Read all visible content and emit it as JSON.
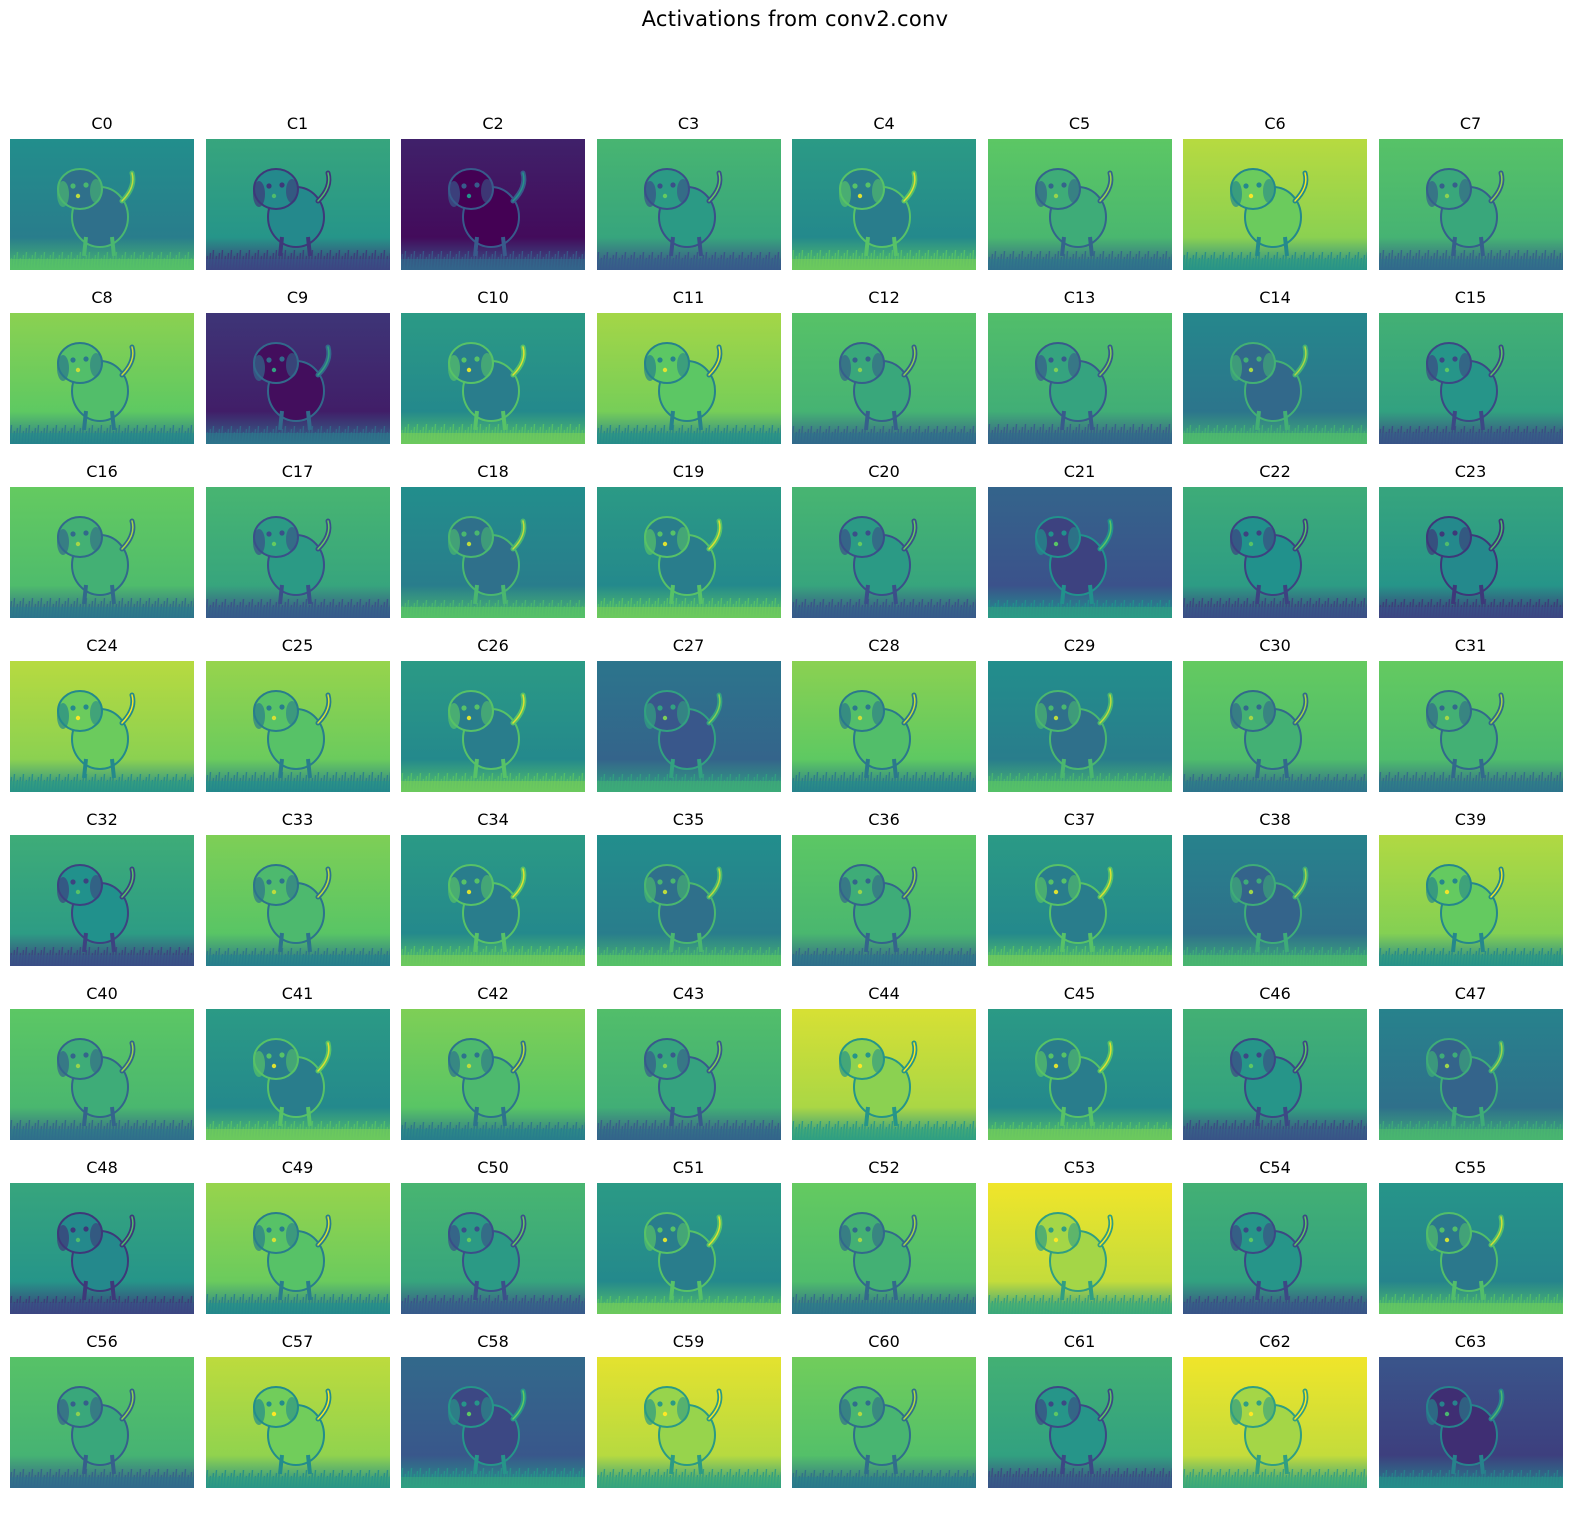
{
  "figure": {
    "title": "Activations from conv2.conv"
  },
  "colormap": [
    "#440154",
    "#3b528b",
    "#21918c",
    "#5ec962",
    "#fde725"
  ],
  "channels": [
    {
      "label": "C0",
      "bg": 0.45
    },
    {
      "label": "C1",
      "bg": 0.55
    },
    {
      "label": "C2",
      "bg": 0.06
    },
    {
      "label": "C3",
      "bg": 0.62
    },
    {
      "label": "C4",
      "bg": 0.5
    },
    {
      "label": "C5",
      "bg": 0.7
    },
    {
      "label": "C6",
      "bg": 0.85
    },
    {
      "label": "C7",
      "bg": 0.68
    },
    {
      "label": "C8",
      "bg": 0.78
    },
    {
      "label": "C9",
      "bg": 0.12
    },
    {
      "label": "C10",
      "bg": 0.5
    },
    {
      "label": "C11",
      "bg": 0.82
    },
    {
      "label": "C12",
      "bg": 0.68
    },
    {
      "label": "C13",
      "bg": 0.66
    },
    {
      "label": "C14",
      "bg": 0.42
    },
    {
      "label": "C15",
      "bg": 0.6
    },
    {
      "label": "C16",
      "bg": 0.72
    },
    {
      "label": "C17",
      "bg": 0.62
    },
    {
      "label": "C18",
      "bg": 0.45
    },
    {
      "label": "C19",
      "bg": 0.5
    },
    {
      "label": "C20",
      "bg": 0.62
    },
    {
      "label": "C21",
      "bg": 0.28
    },
    {
      "label": "C22",
      "bg": 0.58
    },
    {
      "label": "C23",
      "bg": 0.55
    },
    {
      "label": "C24",
      "bg": 0.85
    },
    {
      "label": "C25",
      "bg": 0.8
    },
    {
      "label": "C26",
      "bg": 0.5
    },
    {
      "label": "C27",
      "bg": 0.35
    },
    {
      "label": "C28",
      "bg": 0.78
    },
    {
      "label": "C29",
      "bg": 0.45
    },
    {
      "label": "C30",
      "bg": 0.72
    },
    {
      "label": "C31",
      "bg": 0.72
    },
    {
      "label": "C32",
      "bg": 0.58
    },
    {
      "label": "C33",
      "bg": 0.76
    },
    {
      "label": "C34",
      "bg": 0.5
    },
    {
      "label": "C35",
      "bg": 0.45
    },
    {
      "label": "C36",
      "bg": 0.7
    },
    {
      "label": "C37",
      "bg": 0.5
    },
    {
      "label": "C38",
      "bg": 0.4
    },
    {
      "label": "C39",
      "bg": 0.84
    },
    {
      "label": "C40",
      "bg": 0.7
    },
    {
      "label": "C41",
      "bg": 0.5
    },
    {
      "label": "C42",
      "bg": 0.76
    },
    {
      "label": "C43",
      "bg": 0.66
    },
    {
      "label": "C44",
      "bg": 0.9
    },
    {
      "label": "C45",
      "bg": 0.5
    },
    {
      "label": "C46",
      "bg": 0.6
    },
    {
      "label": "C47",
      "bg": 0.4
    },
    {
      "label": "C48",
      "bg": 0.55
    },
    {
      "label": "C49",
      "bg": 0.8
    },
    {
      "label": "C50",
      "bg": 0.62
    },
    {
      "label": "C51",
      "bg": 0.5
    },
    {
      "label": "C52",
      "bg": 0.72
    },
    {
      "label": "C53",
      "bg": 0.94
    },
    {
      "label": "C54",
      "bg": 0.6
    },
    {
      "label": "C55",
      "bg": 0.48
    },
    {
      "label": "C56",
      "bg": 0.68
    },
    {
      "label": "C57",
      "bg": 0.86
    },
    {
      "label": "C58",
      "bg": 0.3
    },
    {
      "label": "C59",
      "bg": 0.92
    },
    {
      "label": "C60",
      "bg": 0.74
    },
    {
      "label": "C61",
      "bg": 0.6
    },
    {
      "label": "C62",
      "bg": 0.94
    },
    {
      "label": "C63",
      "bg": 0.22
    }
  ]
}
